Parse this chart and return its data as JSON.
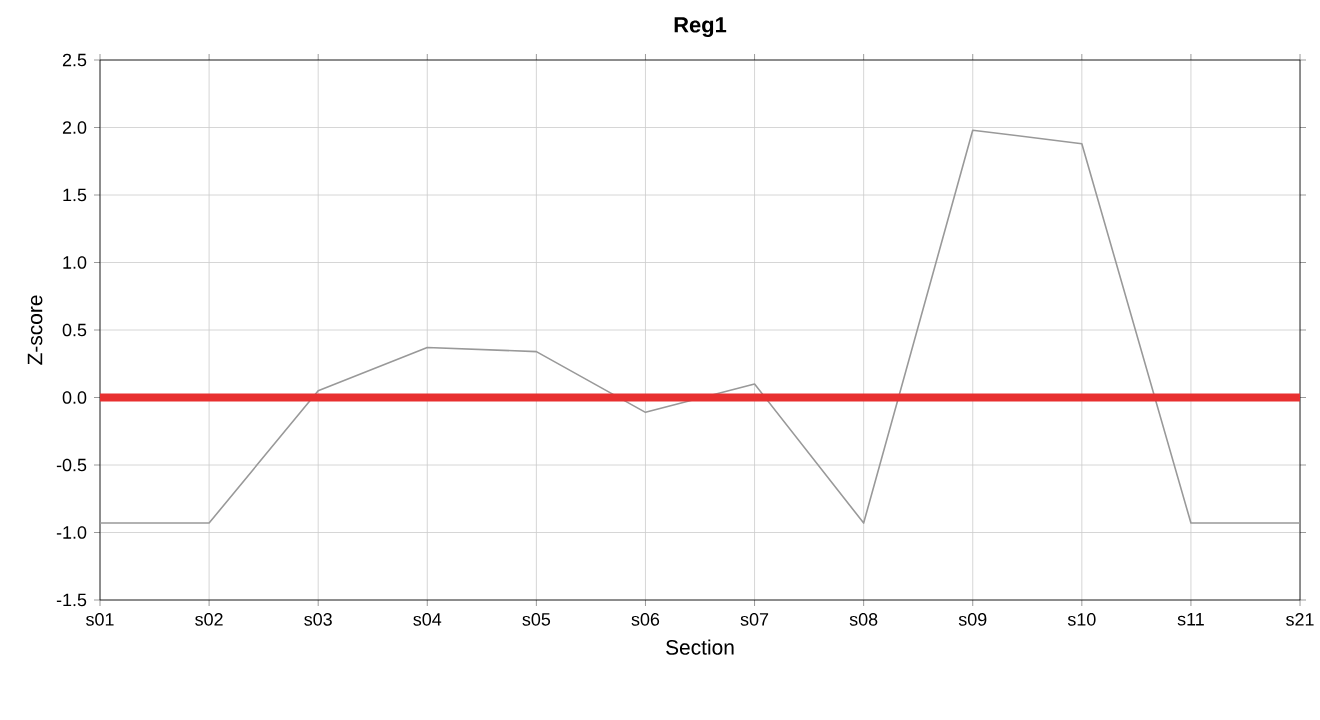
{
  "chart_data": {
    "type": "line",
    "title": "Reg1",
    "xlabel": "Section",
    "ylabel": "Z-score",
    "categories": [
      "s01",
      "s02",
      "s03",
      "s04",
      "s05",
      "s06",
      "s07",
      "s08",
      "s09",
      "s10",
      "s11",
      "s21"
    ],
    "series": [
      {
        "color": "#999999",
        "values": [
          -0.93,
          -0.93,
          0.05,
          0.37,
          0.34,
          -0.11,
          0.1,
          -0.93,
          1.98,
          1.88,
          -0.93,
          -0.93
        ]
      }
    ],
    "ylim": [
      -1.5,
      2.5
    ],
    "yticks": [
      {
        "value": -1.5,
        "label": "-1.5"
      },
      {
        "value": -1.0,
        "label": "-1.0"
      },
      {
        "value": -0.5,
        "label": "-0.5"
      },
      {
        "value": 0,
        "label": "0.0"
      },
      {
        "value": 0.5,
        "label": "0.5"
      },
      {
        "value": 1.0,
        "label": "1.0"
      },
      {
        "value": 1.5,
        "label": "1.5"
      },
      {
        "value": 2.0,
        "label": "2.0"
      },
      {
        "value": 2.5,
        "label": "2.5"
      }
    ],
    "grid": true,
    "marker": "none",
    "line_style": "solid",
    "ref_lines": [
      {
        "axis": "y",
        "value": 0,
        "color": "#e83030"
      }
    ]
  }
}
